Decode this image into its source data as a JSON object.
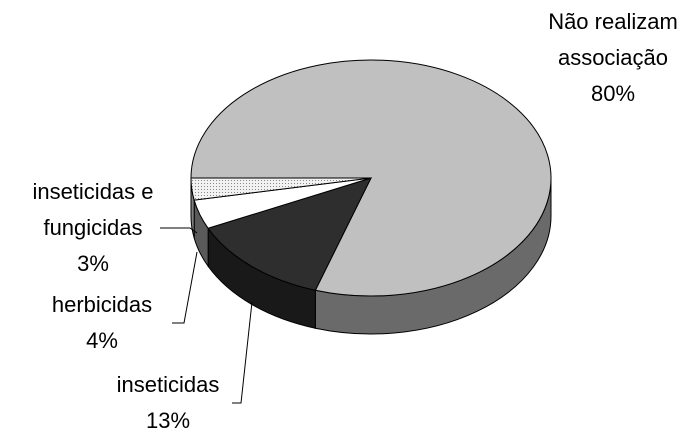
{
  "chart_data": {
    "type": "pie3d",
    "categories": [
      "Não realizam associação",
      "inseticidas",
      "herbicidas",
      "inseticidas e fungicidas"
    ],
    "values": [
      80,
      13,
      4,
      3
    ],
    "value_labels": [
      "80%",
      "13%",
      "4%",
      "3%"
    ],
    "colors": [
      "#c0c0c0",
      "#2e2e2e",
      "#ffffff",
      "#e6e6e6"
    ]
  }
}
